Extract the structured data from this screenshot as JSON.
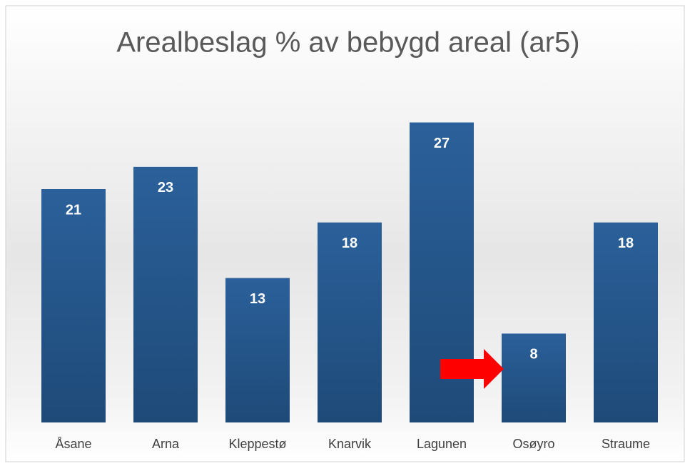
{
  "chart_data": {
    "type": "bar",
    "title": "Arealbeslag % av bebygd areal (ar5)",
    "categories": [
      "Åsane",
      "Arna",
      "Kleppestø",
      "Knarvik",
      "Lagunen",
      "Osøyro",
      "Straume"
    ],
    "values": [
      21,
      23,
      13,
      18,
      27,
      8,
      18
    ],
    "color": "#245a8f",
    "ylim": [
      0,
      28
    ]
  }
}
